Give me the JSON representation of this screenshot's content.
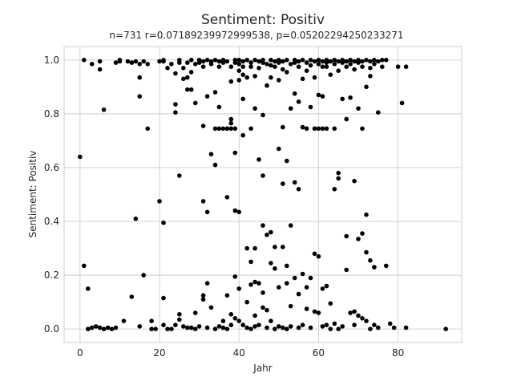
{
  "chart_data": {
    "type": "scatter",
    "title": "Sentiment: Positiv",
    "subtitle": "n=731 r=0.07189239972999538, p=0.05202294250233271",
    "xlabel": "Jahr",
    "ylabel": "Sentiment: Positiv",
    "xlim": [
      -4,
      96
    ],
    "ylim": [
      -0.05,
      1.05
    ],
    "xticks": [
      0,
      20,
      40,
      60,
      80
    ],
    "yticks": [
      0.0,
      0.2,
      0.4,
      0.6,
      0.8,
      1.0
    ],
    "xtick_labels": [
      "0",
      "20",
      "40",
      "60",
      "80"
    ],
    "ytick_labels": [
      "0.0",
      "0.2",
      "0.4",
      "0.6",
      "0.8",
      "1.0"
    ],
    "grid": true,
    "marker_color": "#000000",
    "points": [
      [
        0,
        0.64
      ],
      [
        1,
        1.0
      ],
      [
        1,
        0.235
      ],
      [
        2,
        0.15
      ],
      [
        2,
        0.0
      ],
      [
        3,
        0.985
      ],
      [
        3,
        0.005
      ],
      [
        4,
        0.01
      ],
      [
        5,
        0.995
      ],
      [
        5,
        0.965
      ],
      [
        5,
        0.005
      ],
      [
        6,
        0.815
      ],
      [
        6,
        0.0
      ],
      [
        7,
        0.005
      ],
      [
        8,
        0.0
      ],
      [
        9,
        0.99
      ],
      [
        9,
        0.005
      ],
      [
        10,
        1.0
      ],
      [
        10,
        0.995
      ],
      [
        11,
        0.03
      ],
      [
        12,
        0.995
      ],
      [
        13,
        0.99
      ],
      [
        13,
        0.12
      ],
      [
        14,
        0.995
      ],
      [
        14,
        0.41
      ],
      [
        15,
        0.985
      ],
      [
        15,
        0.935
      ],
      [
        15,
        0.865
      ],
      [
        15,
        0.01
      ],
      [
        16,
        0.995
      ],
      [
        16,
        0.2
      ],
      [
        17,
        0.985
      ],
      [
        17,
        0.745
      ],
      [
        18,
        0.0
      ],
      [
        18,
        0.03
      ],
      [
        19,
        0.0
      ],
      [
        20,
        0.995
      ],
      [
        20,
        0.475
      ],
      [
        21,
        1.0
      ],
      [
        21,
        0.995
      ],
      [
        21,
        0.395
      ],
      [
        21,
        0.115
      ],
      [
        21,
        0.015
      ],
      [
        22,
        0.97
      ],
      [
        22,
        0.0
      ],
      [
        23,
        0.985
      ],
      [
        23,
        0.0
      ],
      [
        24,
        0.95
      ],
      [
        24,
        0.835
      ],
      [
        24,
        0.805
      ],
      [
        24,
        0.015
      ],
      [
        25,
        1.0
      ],
      [
        25,
        0.99
      ],
      [
        25,
        0.57
      ],
      [
        25,
        0.055
      ],
      [
        25,
        0.035
      ],
      [
        26,
        0.97
      ],
      [
        26,
        0.93
      ],
      [
        26,
        0.01
      ],
      [
        27,
        0.99
      ],
      [
        27,
        0.935
      ],
      [
        27,
        0.89
      ],
      [
        27,
        0.005
      ],
      [
        28,
        1.0
      ],
      [
        28,
        0.955
      ],
      [
        28,
        0.89
      ],
      [
        28,
        0.005
      ],
      [
        29,
        0.985
      ],
      [
        29,
        0.84
      ],
      [
        29,
        0.06
      ],
      [
        29,
        0.0
      ],
      [
        30,
        1.0
      ],
      [
        30,
        0.99
      ],
      [
        30,
        0.01
      ],
      [
        31,
        0.995
      ],
      [
        31,
        0.975
      ],
      [
        31,
        0.755
      ],
      [
        31,
        0.475
      ],
      [
        31,
        0.125
      ],
      [
        31,
        0.11
      ],
      [
        32,
        1.0
      ],
      [
        32,
        0.865
      ],
      [
        32,
        0.435
      ],
      [
        32,
        0.17
      ],
      [
        32,
        0.005
      ],
      [
        33,
        0.995
      ],
      [
        33,
        0.985
      ],
      [
        33,
        0.65
      ],
      [
        33,
        0.08
      ],
      [
        34,
        1.0
      ],
      [
        34,
        0.88
      ],
      [
        34,
        0.745
      ],
      [
        34,
        0.61
      ],
      [
        34,
        0.0
      ],
      [
        35,
        0.995
      ],
      [
        35,
        0.975
      ],
      [
        35,
        0.825
      ],
      [
        35,
        0.745
      ],
      [
        35,
        0.01
      ],
      [
        36,
        1.0
      ],
      [
        36,
        0.99
      ],
      [
        36,
        0.745
      ],
      [
        36,
        0.03
      ],
      [
        36,
        0.005
      ],
      [
        37,
        0.995
      ],
      [
        37,
        0.745
      ],
      [
        37,
        0.49
      ],
      [
        37,
        0.125
      ],
      [
        37,
        0.0
      ],
      [
        38,
        0.975
      ],
      [
        38,
        0.92
      ],
      [
        38,
        0.78
      ],
      [
        38,
        0.765
      ],
      [
        38,
        0.745
      ],
      [
        38,
        0.055
      ],
      [
        38,
        0.015
      ],
      [
        39,
        1.0
      ],
      [
        39,
        0.99
      ],
      [
        39,
        0.745
      ],
      [
        39,
        0.655
      ],
      [
        39,
        0.44
      ],
      [
        39,
        0.195
      ],
      [
        39,
        0.04
      ],
      [
        40,
        1.0
      ],
      [
        40,
        0.985
      ],
      [
        40,
        0.96
      ],
      [
        40,
        0.925
      ],
      [
        40,
        0.435
      ],
      [
        40,
        0.15
      ],
      [
        40,
        0.03
      ],
      [
        41,
        0.995
      ],
      [
        41,
        0.975
      ],
      [
        41,
        0.945
      ],
      [
        41,
        0.855
      ],
      [
        41,
        0.72
      ],
      [
        41,
        0.015
      ],
      [
        42,
        1.0
      ],
      [
        42,
        0.935
      ],
      [
        42,
        0.3
      ],
      [
        42,
        0.1
      ],
      [
        42,
        0.005
      ],
      [
        43,
        0.99
      ],
      [
        43,
        0.975
      ],
      [
        43,
        0.745
      ],
      [
        43,
        0.25
      ],
      [
        43,
        0.165
      ],
      [
        43,
        0.0
      ],
      [
        44,
        1.0
      ],
      [
        44,
        0.94
      ],
      [
        44,
        0.82
      ],
      [
        44,
        0.3
      ],
      [
        44,
        0.175
      ],
      [
        44,
        0.05
      ],
      [
        44,
        0.01
      ],
      [
        45,
        0.995
      ],
      [
        45,
        0.97
      ],
      [
        45,
        0.63
      ],
      [
        45,
        0.17
      ],
      [
        45,
        0.015
      ],
      [
        46,
        1.0
      ],
      [
        46,
        0.99
      ],
      [
        46,
        0.795
      ],
      [
        46,
        0.57
      ],
      [
        46,
        0.385
      ],
      [
        46,
        0.135
      ],
      [
        46,
        0.08
      ],
      [
        47,
        0.985
      ],
      [
        47,
        0.905
      ],
      [
        47,
        0.35
      ],
      [
        47,
        0.07
      ],
      [
        47,
        0.005
      ],
      [
        48,
        1.0
      ],
      [
        48,
        0.98
      ],
      [
        48,
        0.935
      ],
      [
        48,
        0.36
      ],
      [
        48,
        0.245
      ],
      [
        48,
        0.03
      ],
      [
        49,
        0.995
      ],
      [
        49,
        0.975
      ],
      [
        49,
        0.305
      ],
      [
        49,
        0.225
      ],
      [
        49,
        0.0
      ],
      [
        50,
        1.0
      ],
      [
        50,
        0.99
      ],
      [
        50,
        0.925
      ],
      [
        50,
        0.67
      ],
      [
        50,
        0.155
      ],
      [
        50,
        0.01
      ],
      [
        51,
        0.995
      ],
      [
        51,
        0.965
      ],
      [
        51,
        0.75
      ],
      [
        51,
        0.54
      ],
      [
        51,
        0.305
      ],
      [
        51,
        0.005
      ],
      [
        52,
        1.0
      ],
      [
        52,
        0.955
      ],
      [
        52,
        0.625
      ],
      [
        52,
        0.235
      ],
      [
        52,
        0.17
      ],
      [
        52,
        0.0
      ],
      [
        53,
        0.985
      ],
      [
        53,
        0.82
      ],
      [
        53,
        0.385
      ],
      [
        53,
        0.085
      ],
      [
        53,
        0.01
      ],
      [
        54,
        1.0
      ],
      [
        54,
        0.99
      ],
      [
        54,
        0.875
      ],
      [
        54,
        0.545
      ],
      [
        54,
        0.19
      ],
      [
        55,
        0.995
      ],
      [
        55,
        0.975
      ],
      [
        55,
        0.845
      ],
      [
        55,
        0.52
      ],
      [
        55,
        0.13
      ],
      [
        55,
        0.005
      ],
      [
        56,
        1.0
      ],
      [
        56,
        0.93
      ],
      [
        56,
        0.75
      ],
      [
        56,
        0.205
      ],
      [
        56,
        0.015
      ],
      [
        57,
        0.99
      ],
      [
        57,
        0.96
      ],
      [
        57,
        0.745
      ],
      [
        57,
        0.155
      ],
      [
        57,
        0.075
      ],
      [
        58,
        1.0
      ],
      [
        58,
        0.98
      ],
      [
        58,
        0.825
      ],
      [
        58,
        0.19
      ],
      [
        58,
        0.005
      ],
      [
        59,
        0.995
      ],
      [
        59,
        0.935
      ],
      [
        59,
        0.745
      ],
      [
        59,
        0.28
      ],
      [
        59,
        0.065
      ],
      [
        60,
        1.0
      ],
      [
        60,
        0.985
      ],
      [
        60,
        0.87
      ],
      [
        60,
        0.745
      ],
      [
        60,
        0.27
      ],
      [
        60,
        0.06
      ],
      [
        61,
        0.995
      ],
      [
        61,
        0.975
      ],
      [
        61,
        0.865
      ],
      [
        61,
        0.745
      ],
      [
        61,
        0.15
      ],
      [
        61,
        0.01
      ],
      [
        62,
        1.0
      ],
      [
        62,
        0.99
      ],
      [
        62,
        0.975
      ],
      [
        62,
        0.745
      ],
      [
        62,
        0.16
      ],
      [
        62,
        0.015
      ],
      [
        63,
        0.995
      ],
      [
        63,
        0.945
      ],
      [
        63,
        0.095
      ],
      [
        63,
        0.0
      ],
      [
        64,
        1.0
      ],
      [
        64,
        0.985
      ],
      [
        64,
        0.745
      ],
      [
        64,
        0.52
      ],
      [
        64,
        0.02
      ],
      [
        65,
        0.995
      ],
      [
        65,
        0.96
      ],
      [
        65,
        0.58
      ],
      [
        65,
        0.56
      ],
      [
        65,
        0.0
      ],
      [
        66,
        1.0
      ],
      [
        66,
        0.99
      ],
      [
        66,
        0.855
      ],
      [
        66,
        0.01
      ],
      [
        67,
        0.995
      ],
      [
        67,
        0.975
      ],
      [
        67,
        0.78
      ],
      [
        67,
        0.345
      ],
      [
        67,
        0.22
      ],
      [
        68,
        1.0
      ],
      [
        68,
        0.985
      ],
      [
        68,
        0.86
      ],
      [
        68,
        0.06
      ],
      [
        69,
        0.995
      ],
      [
        69,
        0.965
      ],
      [
        69,
        0.55
      ],
      [
        69,
        0.065
      ],
      [
        69,
        0.015
      ],
      [
        70,
        1.0
      ],
      [
        70,
        0.99
      ],
      [
        70,
        0.82
      ],
      [
        70,
        0.335
      ],
      [
        70,
        0.05
      ],
      [
        71,
        0.995
      ],
      [
        71,
        0.975
      ],
      [
        71,
        0.745
      ],
      [
        71,
        0.355
      ],
      [
        71,
        0.04
      ],
      [
        72,
        1.0
      ],
      [
        72,
        0.9
      ],
      [
        72,
        0.425
      ],
      [
        72,
        0.285
      ],
      [
        72,
        0.03
      ],
      [
        73,
        0.995
      ],
      [
        73,
        0.97
      ],
      [
        73,
        0.94
      ],
      [
        73,
        0.255
      ],
      [
        73,
        0.0
      ],
      [
        74,
        1.0
      ],
      [
        74,
        0.985
      ],
      [
        74,
        0.23
      ],
      [
        74,
        0.015
      ],
      [
        75,
        0.995
      ],
      [
        75,
        0.805
      ],
      [
        75,
        0.005
      ],
      [
        76,
        1.0
      ],
      [
        76,
        0.975
      ],
      [
        77,
        1.0
      ],
      [
        77,
        0.235
      ],
      [
        78,
        0.02
      ],
      [
        79,
        0.005
      ],
      [
        80,
        0.975
      ],
      [
        81,
        0.84
      ],
      [
        82,
        0.975
      ],
      [
        82,
        0.005
      ],
      [
        92,
        0.0
      ]
    ]
  }
}
